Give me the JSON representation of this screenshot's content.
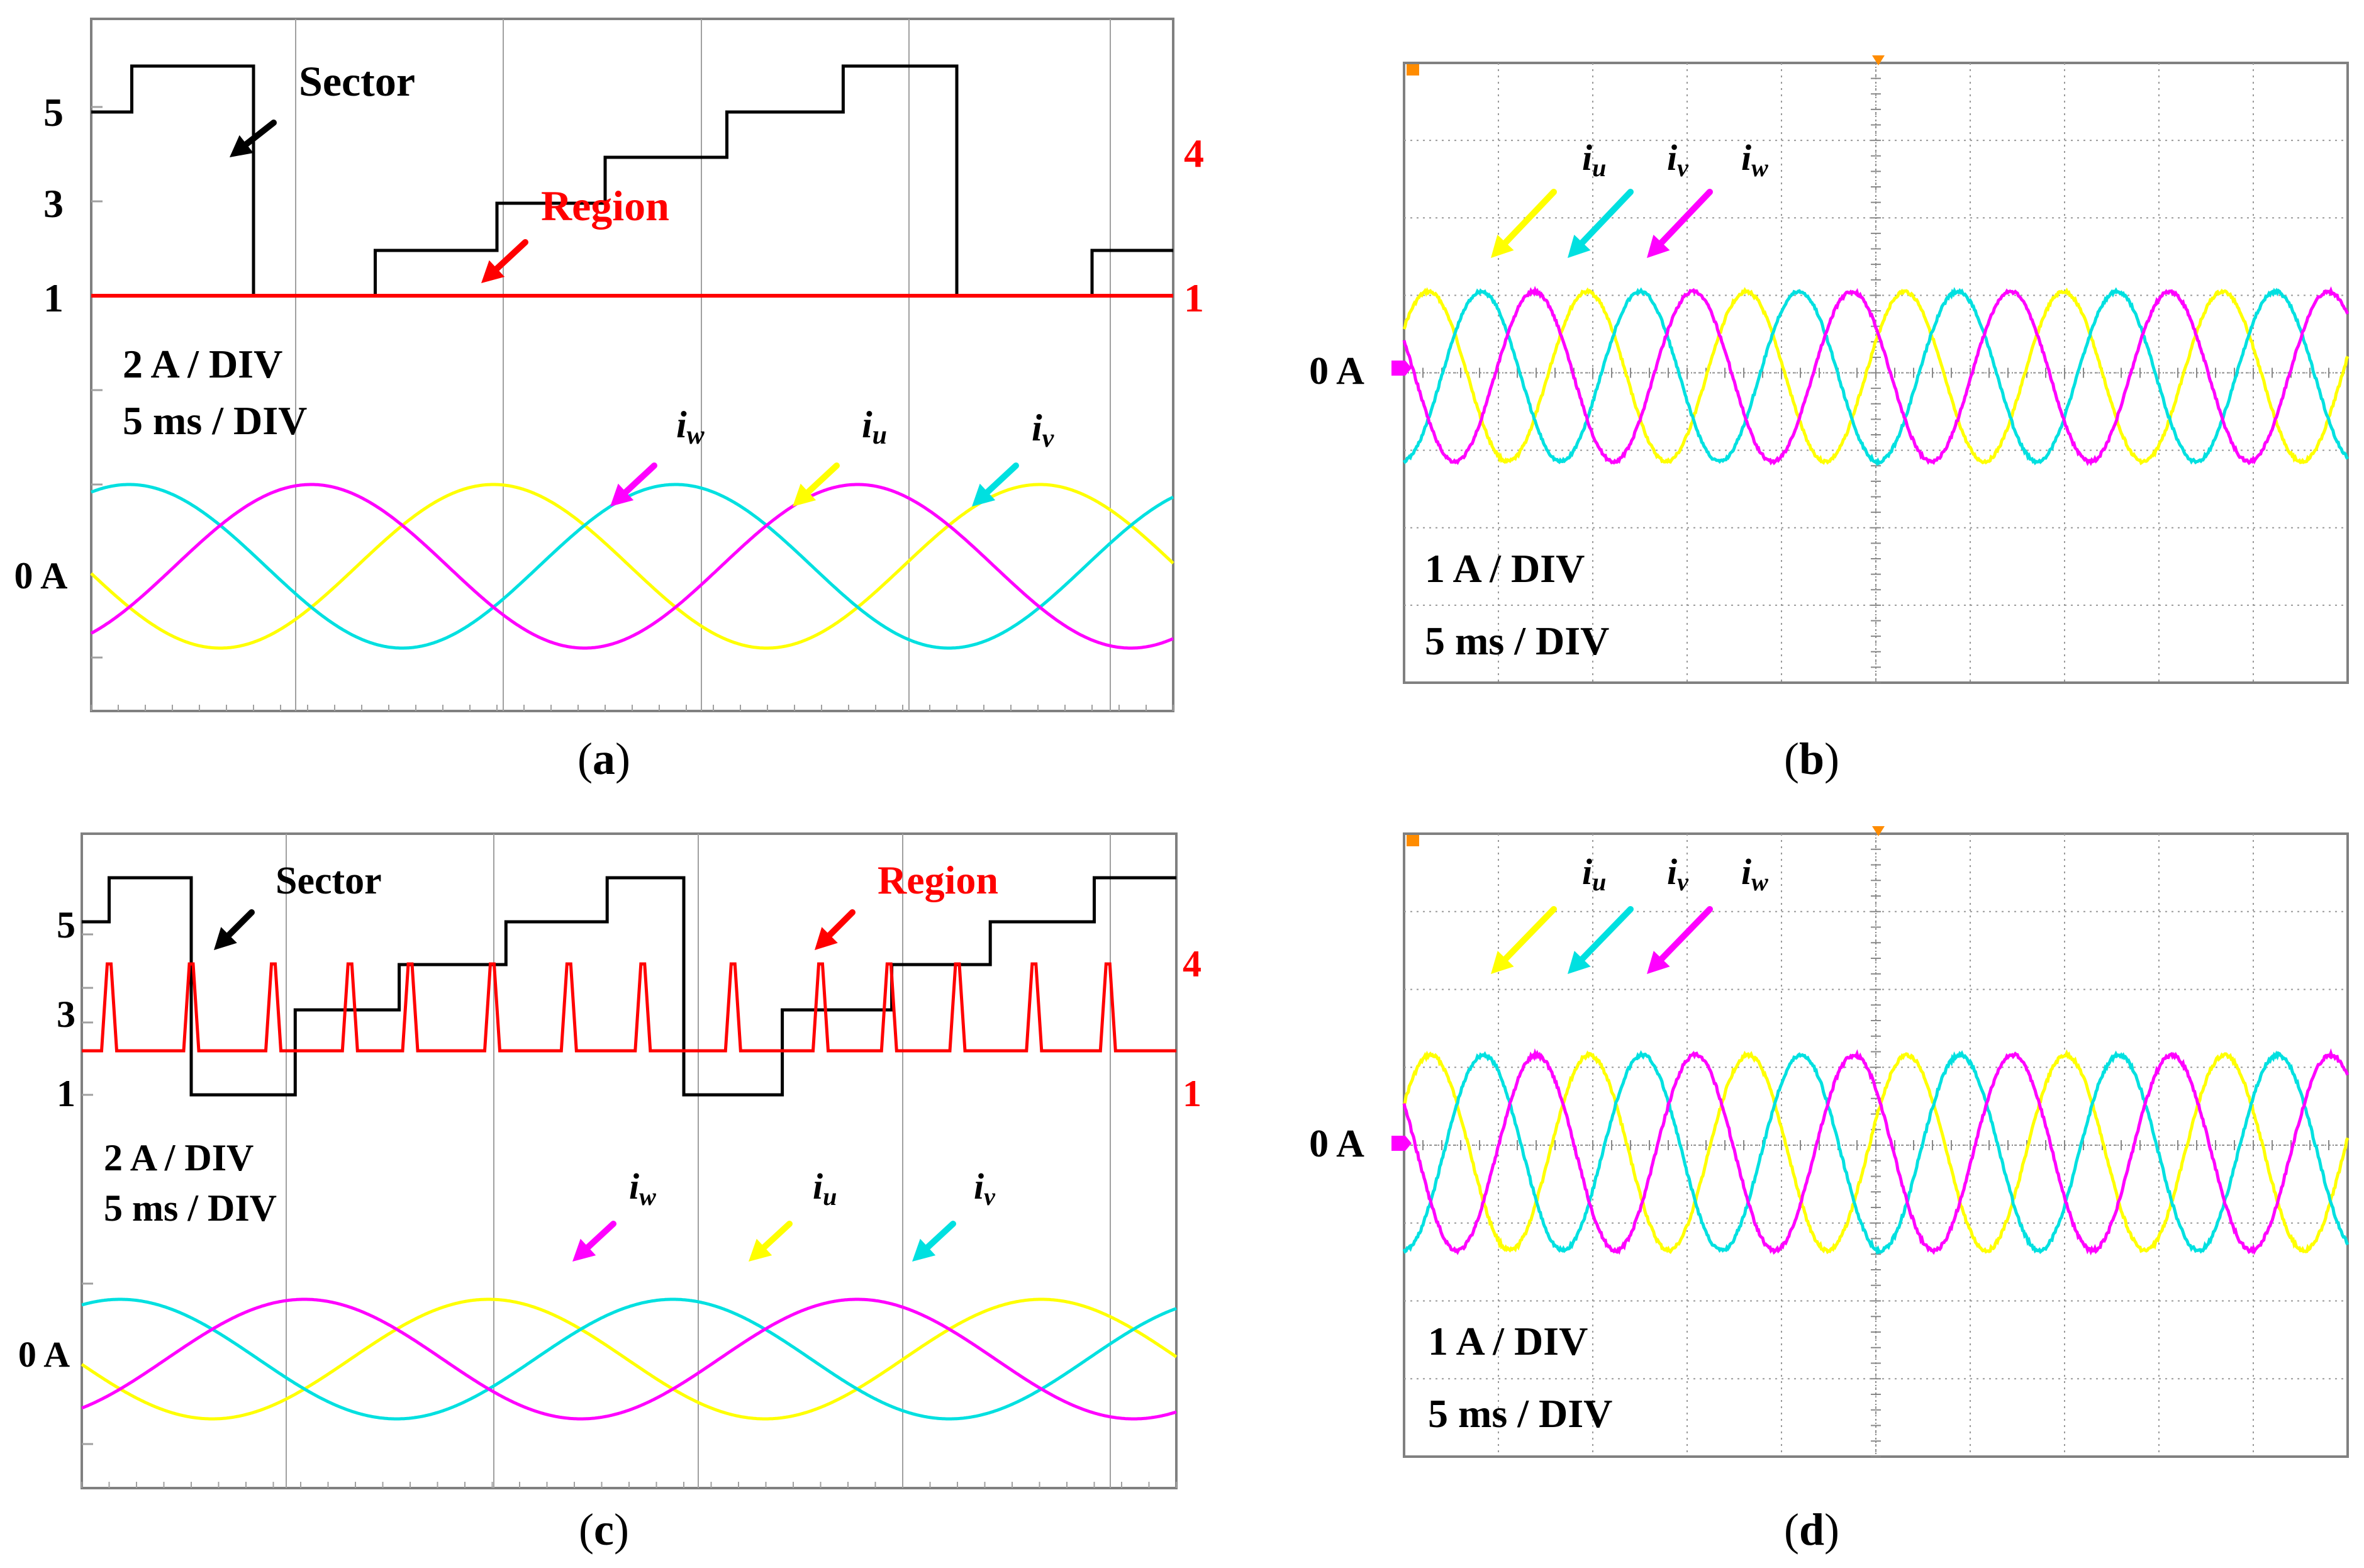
{
  "figure": {
    "panels": [
      {
        "id": "a",
        "caption": "(a)",
        "kind": "sim"
      },
      {
        "id": "b",
        "caption": "(b)",
        "kind": "scope"
      },
      {
        "id": "c",
        "caption": "(c)",
        "kind": "sim"
      },
      {
        "id": "d",
        "caption": "(d)",
        "kind": "scope"
      }
    ],
    "colors": {
      "iu": "#ffff00",
      "iv": "#00e0e0",
      "iw": "#ff00ff",
      "sector": "#000000",
      "region": "#ff0000",
      "grid": "#a0a0a0",
      "frame": "#808080"
    }
  },
  "chart_data": [
    {
      "panel": "a",
      "type": "line",
      "title": "",
      "annotations": {
        "sector": "Sector",
        "region": "Region",
        "scale_current": "2 A / DIV",
        "scale_time": "5 ms / DIV",
        "zero": "0 A"
      },
      "left_axis_ticks": [
        "5",
        "3",
        "1"
      ],
      "right_axis_ticks": [
        "4",
        "1"
      ],
      "current_labels": {
        "iu": "u",
        "iv": "v",
        "iw": "w"
      },
      "xlim_ms": [
        0,
        40
      ],
      "current_divisions_A_per_div": 2,
      "series": [
        {
          "name": "Sector",
          "unit": "sector",
          "t_ms": [
            0,
            1.5,
            1.5,
            6.0,
            6.0,
            10.5,
            10.5,
            15.0,
            15.0,
            19.0,
            19.0,
            23.5,
            23.5,
            27.8,
            27.8,
            32.0,
            32.0,
            37.0,
            37.0,
            40
          ],
          "values": [
            5,
            5,
            6,
            6,
            1,
            1,
            2,
            2,
            3,
            3,
            4,
            4,
            5,
            5,
            6,
            6,
            1,
            1,
            2,
            2
          ]
        },
        {
          "name": "Region",
          "unit": "region",
          "t_ms": [
            0,
            40
          ],
          "values": [
            1,
            1
          ]
        },
        {
          "name": "iu",
          "unit": "A",
          "amplitude": 0.95,
          "period_ms": 20.2,
          "phase_deg": 185
        },
        {
          "name": "iv",
          "unit": "A",
          "amplitude": 0.95,
          "period_ms": 20.2,
          "phase_deg": 65
        },
        {
          "name": "iw",
          "unit": "A",
          "amplitude": 0.95,
          "period_ms": 20.2,
          "phase_deg": 305
        }
      ]
    },
    {
      "panel": "b",
      "type": "line",
      "title": "",
      "annotations": {
        "scale_current": "1 A / DIV",
        "scale_time": "5 ms / DIV",
        "zero": "0 A"
      },
      "current_labels": {
        "iu": "u",
        "iv": "v",
        "iw": "w"
      },
      "xlim_ms": [
        0,
        60
      ],
      "ylim_div": [
        -4,
        4
      ],
      "current_divisions_A_per_div": 1,
      "series": [
        {
          "name": "iu",
          "unit": "A",
          "amplitude": 1.0,
          "period_ms": 10.1,
          "phase_deg": 35,
          "offset_A": -0.1
        },
        {
          "name": "iv",
          "unit": "A",
          "amplitude": 1.0,
          "period_ms": 10.1,
          "phase_deg": -85,
          "offset_A": -0.1
        },
        {
          "name": "iw",
          "unit": "A",
          "amplitude": 1.0,
          "period_ms": 10.1,
          "phase_deg": 155,
          "offset_A": -0.1
        }
      ]
    },
    {
      "panel": "c",
      "type": "line",
      "title": "",
      "annotations": {
        "sector": "Sector",
        "region": "Region",
        "scale_current": "2 A / DIV",
        "scale_time": "5 ms / DIV",
        "zero": "0 A"
      },
      "left_axis_ticks": [
        "5",
        "3",
        "1"
      ],
      "right_axis_ticks": [
        "4",
        "1"
      ],
      "current_labels": {
        "iu": "u",
        "iv": "v",
        "iw": "w"
      },
      "xlim_ms": [
        0,
        40
      ],
      "current_divisions_A_per_div": 2,
      "series": [
        {
          "name": "Sector",
          "unit": "sector",
          "t_ms": [
            0,
            1.0,
            1.0,
            4.0,
            4.0,
            7.8,
            7.8,
            11.6,
            11.6,
            15.5,
            15.5,
            19.2,
            19.2,
            22.0,
            22.0,
            25.6,
            25.6,
            29.6,
            29.6,
            33.2,
            33.2,
            37.0,
            37.0,
            40
          ],
          "values": [
            5,
            5,
            6,
            6,
            1,
            1,
            3,
            3,
            4,
            4,
            5,
            5,
            6,
            6,
            1,
            1,
            3,
            3,
            4,
            4,
            5,
            5,
            6,
            6
          ]
        },
        {
          "name": "Region",
          "unit": "region",
          "baseline": 2,
          "spike_peak": 4,
          "spike_t_ms": [
            1.0,
            4.0,
            7.0,
            9.8,
            12.0,
            15.0,
            17.8,
            20.5,
            23.8,
            27.0,
            29.5,
            32.0,
            34.8,
            37.5
          ]
        },
        {
          "name": "iu",
          "unit": "A",
          "amplitude": 1.4,
          "period_ms": 20.2,
          "phase_deg": 185
        },
        {
          "name": "iv",
          "unit": "A",
          "amplitude": 1.4,
          "period_ms": 20.2,
          "phase_deg": 65
        },
        {
          "name": "iw",
          "unit": "A",
          "amplitude": 1.4,
          "period_ms": 20.2,
          "phase_deg": 305
        }
      ]
    },
    {
      "panel": "d",
      "type": "line",
      "title": "",
      "annotations": {
        "scale_current": "1 A / DIV",
        "scale_time": "5 ms / DIV",
        "zero": "0 A"
      },
      "current_labels": {
        "iu": "u",
        "iv": "v",
        "iw": "w"
      },
      "xlim_ms": [
        0,
        60
      ],
      "ylim_div": [
        -4,
        4
      ],
      "current_divisions_A_per_div": 1,
      "series": [
        {
          "name": "iu",
          "unit": "A",
          "amplitude": 1.55,
          "period_ms": 10.1,
          "phase_deg": 30,
          "offset_A": -0.15
        },
        {
          "name": "iv",
          "unit": "A",
          "amplitude": 1.55,
          "period_ms": 10.1,
          "phase_deg": -90,
          "offset_A": -0.15
        },
        {
          "name": "iw",
          "unit": "A",
          "amplitude": 1.55,
          "period_ms": 10.1,
          "phase_deg": 150,
          "offset_A": -0.15
        }
      ]
    }
  ]
}
